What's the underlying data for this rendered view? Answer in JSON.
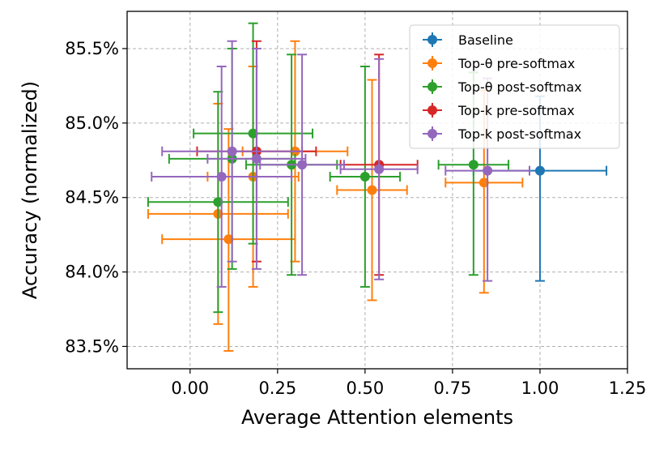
{
  "chart_data": {
    "type": "scatter",
    "title": "",
    "xlabel": "Average Attention elements",
    "ylabel": "Accuracy (normalized)",
    "xlim": [
      -0.18,
      1.25
    ],
    "ylim": [
      83.35,
      85.75
    ],
    "xticks": [
      0.0,
      0.25,
      0.5,
      0.75,
      1.0,
      1.25
    ],
    "xtick_labels": [
      "0.00",
      "0.25",
      "0.50",
      "0.75",
      "1.00",
      "1.25"
    ],
    "yticks": [
      83.5,
      84.0,
      84.5,
      85.0,
      85.5
    ],
    "ytick_labels": [
      "83.5%",
      "84.0%",
      "84.5%",
      "85.0%",
      "85.5%"
    ],
    "grid": true,
    "legend_position": "top-right",
    "series": [
      {
        "name": "Baseline",
        "color": "#1f77b4",
        "points": [
          {
            "x": 1.0,
            "y": 84.68,
            "xerr": 0.19,
            "yerr": [
              0.74,
              0.5
            ]
          }
        ]
      },
      {
        "name": "Top-θ pre-softmax",
        "color": "#ff7f0e",
        "points": [
          {
            "x": 0.84,
            "y": 84.6,
            "xerr": 0.11,
            "yerr": [
              0.74,
              0.62
            ]
          },
          {
            "x": 0.52,
            "y": 84.55,
            "xerr": 0.1,
            "yerr": [
              0.74,
              0.74
            ]
          },
          {
            "x": 0.3,
            "y": 84.81,
            "xerr": 0.15,
            "yerr": [
              0.74,
              0.74
            ]
          },
          {
            "x": 0.18,
            "y": 84.64,
            "xerr": 0.13,
            "yerr": [
              0.74,
              0.74
            ]
          },
          {
            "x": 0.08,
            "y": 84.39,
            "xerr": 0.2,
            "yerr": [
              0.74,
              0.74
            ]
          },
          {
            "x": 0.11,
            "y": 84.22,
            "xerr": 0.19,
            "yerr": [
              0.75,
              0.74
            ]
          }
        ]
      },
      {
        "name": "Top-θ post-softmax",
        "color": "#2ca02c",
        "points": [
          {
            "x": 0.81,
            "y": 84.72,
            "xerr": 0.1,
            "yerr": [
              0.74,
              0.62
            ]
          },
          {
            "x": 0.5,
            "y": 84.64,
            "xerr": 0.1,
            "yerr": [
              0.74,
              0.74
            ]
          },
          {
            "x": 0.29,
            "y": 84.72,
            "xerr": 0.13,
            "yerr": [
              0.74,
              0.74
            ]
          },
          {
            "x": 0.18,
            "y": 84.93,
            "xerr": 0.17,
            "yerr": [
              0.74,
              0.74
            ]
          },
          {
            "x": 0.12,
            "y": 84.76,
            "xerr": 0.18,
            "yerr": [
              0.74,
              0.74
            ]
          },
          {
            "x": 0.08,
            "y": 84.47,
            "xerr": 0.2,
            "yerr": [
              0.74,
              0.74
            ]
          }
        ]
      },
      {
        "name": "Top-k pre-softmax",
        "color": "#d62728",
        "points": [
          {
            "x": 0.54,
            "y": 84.72,
            "xerr": 0.11,
            "yerr": [
              0.74,
              0.74
            ]
          },
          {
            "x": 0.19,
            "y": 84.81,
            "xerr": 0.17,
            "yerr": [
              0.74,
              0.74
            ]
          }
        ]
      },
      {
        "name": "Top-k post-softmax",
        "color": "#9467bd",
        "points": [
          {
            "x": 0.85,
            "y": 84.68,
            "xerr": 0.12,
            "yerr": [
              0.74,
              0.62
            ]
          },
          {
            "x": 0.54,
            "y": 84.69,
            "xerr": 0.11,
            "yerr": [
              0.74,
              0.74
            ]
          },
          {
            "x": 0.32,
            "y": 84.72,
            "xerr": 0.12,
            "yerr": [
              0.74,
              0.74
            ]
          },
          {
            "x": 0.19,
            "y": 84.76,
            "xerr": 0.14,
            "yerr": [
              0.74,
              0.74
            ]
          },
          {
            "x": 0.12,
            "y": 84.81,
            "xerr": 0.2,
            "yerr": [
              0.74,
              0.74
            ]
          },
          {
            "x": 0.09,
            "y": 84.64,
            "xerr": 0.2,
            "yerr": [
              0.74,
              0.74
            ]
          }
        ]
      }
    ]
  }
}
